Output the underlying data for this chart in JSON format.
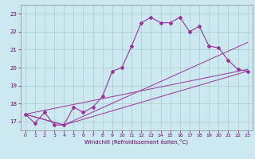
{
  "title": "",
  "xlabel": "Windchill (Refroidissement éolien,°C)",
  "bg_color": "#cce8f0",
  "grid_color": "#aacccc",
  "line_color": "#993399",
  "marker_color": "#993399",
  "xlim": [
    -0.5,
    23.5
  ],
  "ylim": [
    16.5,
    23.5
  ],
  "yticks": [
    17,
    18,
    19,
    20,
    21,
    22,
    23
  ],
  "xticks": [
    0,
    1,
    2,
    3,
    4,
    5,
    6,
    7,
    8,
    9,
    10,
    11,
    12,
    13,
    14,
    15,
    16,
    17,
    18,
    19,
    20,
    21,
    22,
    23
  ],
  "series1_x": [
    0,
    1,
    2,
    3,
    4,
    5,
    6,
    7,
    8,
    9,
    10,
    11,
    12,
    13,
    14,
    15,
    16,
    17,
    18,
    19,
    20,
    21,
    22,
    23
  ],
  "series1_y": [
    17.4,
    16.9,
    17.5,
    16.8,
    16.8,
    17.8,
    17.5,
    17.8,
    18.4,
    19.8,
    20.0,
    21.2,
    22.5,
    22.8,
    22.5,
    22.5,
    22.8,
    22.0,
    22.3,
    21.2,
    21.1,
    20.4,
    19.9,
    19.8
  ],
  "series2_x": [
    0,
    23
  ],
  "series2_y": [
    17.4,
    19.9
  ],
  "series3_x": [
    0,
    4,
    23
  ],
  "series3_y": [
    17.4,
    16.8,
    19.8
  ],
  "series4_x": [
    0,
    4,
    23
  ],
  "series4_y": [
    17.4,
    16.8,
    21.4
  ]
}
